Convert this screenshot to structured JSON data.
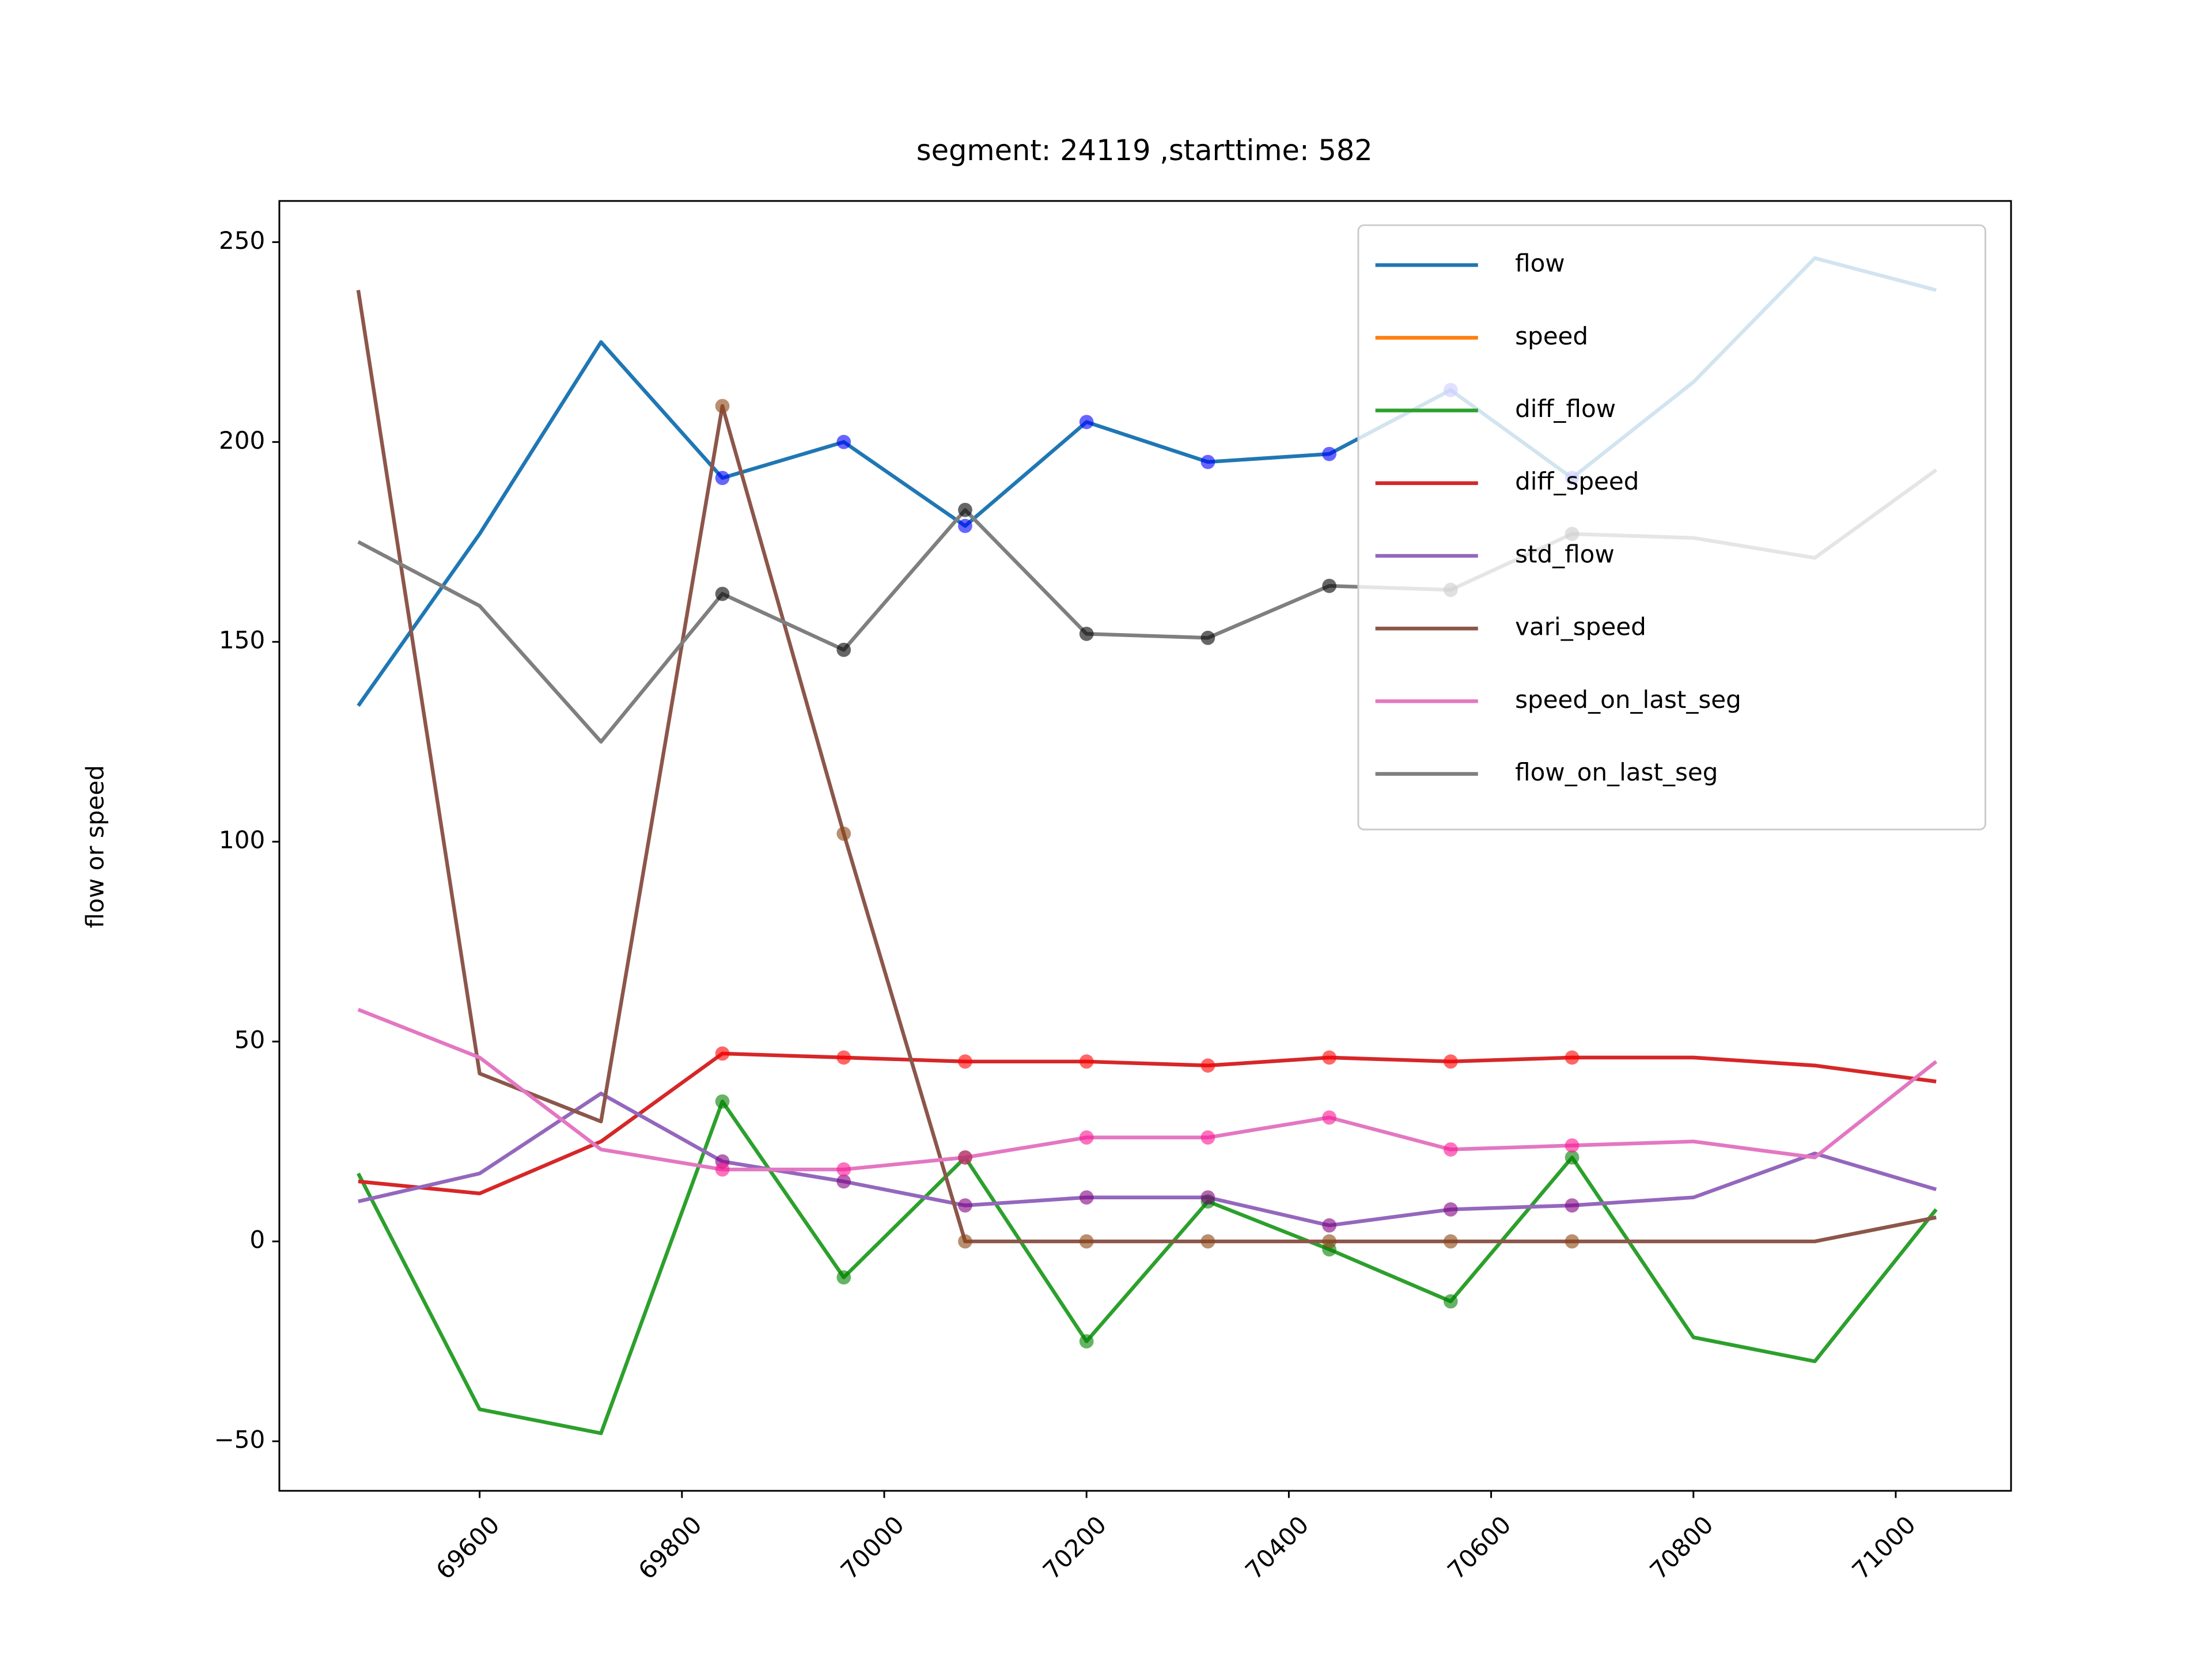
{
  "chart_data": {
    "type": "line",
    "title": "segment: 24119 ,starttime: 582",
    "ylabel": "flow or speed",
    "x": [
      69480,
      69600,
      69720,
      69840,
      69960,
      70080,
      70200,
      70320,
      70440,
      70560,
      70680,
      70800,
      70920,
      71040
    ],
    "xlim": [
      69402,
      71114
    ],
    "xticks": [
      69600,
      69800,
      70000,
      70200,
      70400,
      70600,
      70800,
      71000
    ],
    "ylim": [
      -62.4,
      260.3
    ],
    "yticks": [
      {
        "value": -50,
        "label": "−50"
      },
      0,
      50,
      100,
      150,
      200,
      250
    ],
    "legend": "upper right",
    "series": [
      {
        "name": "flow",
        "color": "#1f77b4",
        "marker_color": "#0000ff",
        "values": [
          134,
          177,
          225,
          191,
          200,
          179,
          205,
          195,
          197,
          213,
          191,
          215,
          246,
          238
        ]
      },
      {
        "name": "speed",
        "color": "#ff7f0e",
        "values": [
          null,
          null,
          null,
          null,
          null,
          null,
          null,
          null,
          null,
          null,
          null,
          null,
          null,
          null
        ]
      },
      {
        "name": "diff_flow",
        "color": "#2ca02c",
        "marker_color": "#008000",
        "values": [
          17,
          -42,
          -48,
          35,
          -9,
          21,
          -25,
          10,
          -2,
          -15,
          21,
          -24,
          -30,
          8
        ]
      },
      {
        "name": "diff_speed",
        "color": "#d62728",
        "marker_color": "#ff0000",
        "values": [
          15,
          12,
          25,
          47,
          46,
          45,
          45,
          44,
          46,
          45,
          46,
          46,
          44,
          40
        ]
      },
      {
        "name": "std_flow",
        "color": "#9467bd",
        "marker_color": "#800080",
        "values": [
          10,
          17,
          37,
          20,
          15,
          9,
          11,
          11,
          4,
          8,
          9,
          11,
          22,
          13
        ]
      },
      {
        "name": "vari_speed",
        "color": "#8c564b",
        "marker_color": "#8b4513",
        "values": [
          238,
          42,
          30,
          209,
          102,
          0,
          0,
          0,
          0,
          0,
          0,
          0,
          0,
          6
        ]
      },
      {
        "name": "speed_on_last_seg",
        "color": "#e377c2",
        "marker_color": "#ff1493",
        "values": [
          58,
          46,
          23,
          18,
          18,
          21,
          26,
          26,
          31,
          23,
          24,
          25,
          21,
          45
        ]
      },
      {
        "name": "flow_on_last_seg",
        "color": "#7f7f7f",
        "marker_color": "#000000",
        "values": [
          175,
          159,
          125,
          162,
          148,
          183,
          152,
          151,
          164,
          163,
          177,
          176,
          171,
          193
        ]
      }
    ]
  }
}
